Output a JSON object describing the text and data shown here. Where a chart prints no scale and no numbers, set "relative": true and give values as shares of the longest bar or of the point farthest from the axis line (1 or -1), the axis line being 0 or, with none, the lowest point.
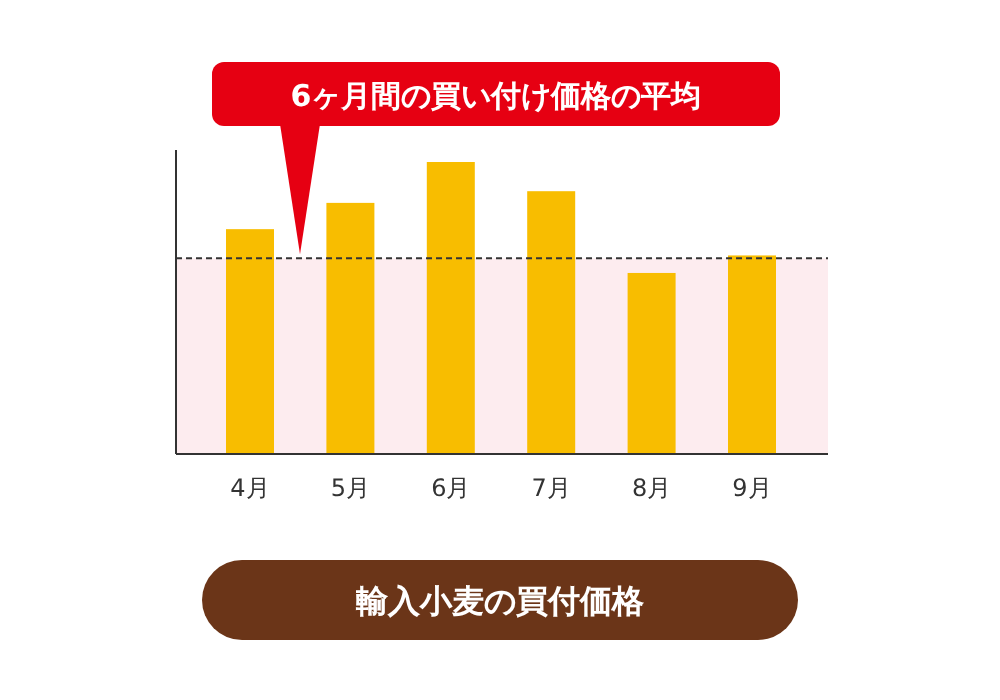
{
  "chart_data": {
    "type": "bar",
    "title": "輸入小麦の買付価格",
    "relative": true,
    "categories": [
      "4月",
      "5月",
      "6月",
      "7月",
      "8月",
      "9月"
    ],
    "values": [
      0.77,
      0.86,
      1,
      0.9,
      0.62,
      0.68
    ],
    "color": "#f8bd00",
    "ref_lines": [
      {
        "axis": "y",
        "value": 0.67,
        "label": "6ヶ月間の買い付け価格の平均",
        "line_style": "dashed",
        "color": "#333333"
      }
    ],
    "bands": [
      {
        "axis": "y",
        "from": 0,
        "to": 0.67,
        "color": "#fdecef"
      }
    ]
  }
}
